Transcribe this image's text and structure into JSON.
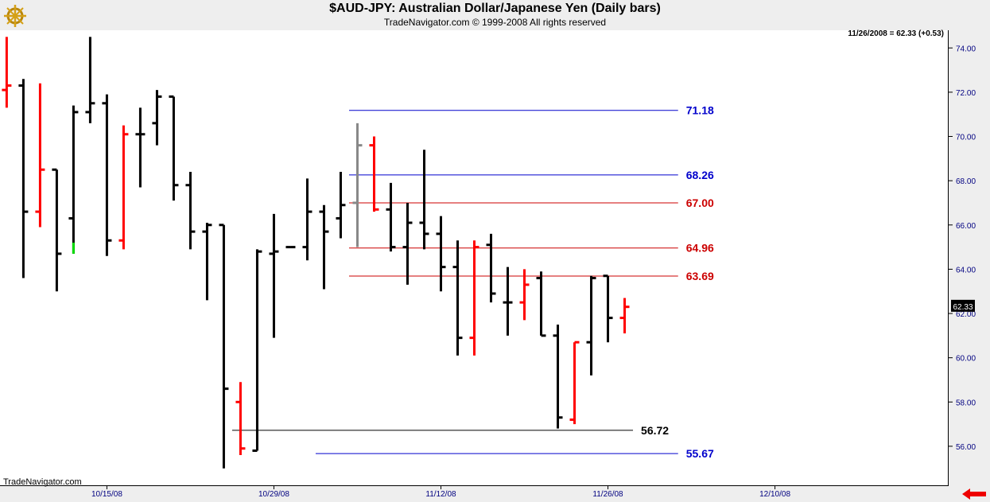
{
  "header": {
    "title": "$AUD-JPY:  Australian Dollar/Japanese Yen  (Daily bars)",
    "subtitle": "TradeNavigator.com © 1999-2008 All rights reserved",
    "logo_icon": "ship-wheel-logo-icon",
    "readout": "11/26/2008 = 62.33 (+0.53)"
  },
  "footer": {
    "watermark": "TradeNavigator.com",
    "nav_icon": "red-left-arrow-icon"
  },
  "colors": {
    "up_bar": "#000000",
    "down_bar": "#ff0000",
    "green_mark": "#00dd00",
    "gray_bar": "#888888",
    "blue_level": "#0000cc",
    "red_level": "#cc0000",
    "black_level": "#000000",
    "axis_text": "#000080",
    "panel": "#eeeeee"
  },
  "chart_data": {
    "type": "ohlc",
    "ylim": [
      54.2,
      74.8
    ],
    "y_ticks": [
      "56.00",
      "58.00",
      "60.00",
      "62.00",
      "64.00",
      "66.00",
      "68.00",
      "70.00",
      "72.00",
      "74.00"
    ],
    "x_ticks": [
      {
        "label": "10/15/08",
        "index": 6
      },
      {
        "label": "10/29/08",
        "index": 16
      },
      {
        "label": "11/12/08",
        "index": 26
      },
      {
        "label": "11/26/08",
        "index": 36
      },
      {
        "label": "12/10/08",
        "index": 46
      }
    ],
    "x_range": [
      -0.4,
      56.4
    ],
    "last_price_label": "62.33",
    "last_price": 62.33,
    "bars": [
      {
        "o": 72.1,
        "h": 74.5,
        "l": 71.3,
        "c": 72.3,
        "color": "red"
      },
      {
        "o": 72.3,
        "h": 72.6,
        "l": 63.6,
        "c": 66.6,
        "color": "black"
      },
      {
        "o": 66.6,
        "h": 72.4,
        "l": 65.9,
        "c": 68.5,
        "color": "red"
      },
      {
        "o": 68.5,
        "h": 68.5,
        "l": 63.0,
        "c": 64.7,
        "color": "black"
      },
      {
        "o": 66.3,
        "h": 71.4,
        "l": 64.7,
        "c": 71.1,
        "color": "black",
        "marker": {
          "from": 65.2,
          "to": 64.7,
          "color": "green"
        }
      },
      {
        "o": 71.1,
        "h": 74.5,
        "l": 70.6,
        "c": 71.5,
        "color": "black"
      },
      {
        "o": 71.5,
        "h": 71.9,
        "l": 64.6,
        "c": 65.3,
        "color": "black"
      },
      {
        "o": 65.3,
        "h": 70.5,
        "l": 64.9,
        "c": 70.1,
        "color": "red"
      },
      {
        "o": 70.1,
        "h": 71.3,
        "l": 67.7,
        "c": 70.1,
        "color": "black"
      },
      {
        "o": 70.6,
        "h": 72.1,
        "l": 69.6,
        "c": 71.8,
        "color": "black"
      },
      {
        "o": 71.8,
        "h": 71.8,
        "l": 67.1,
        "c": 67.8,
        "color": "black"
      },
      {
        "o": 67.8,
        "h": 68.4,
        "l": 64.9,
        "c": 65.7,
        "color": "black"
      },
      {
        "o": 65.7,
        "h": 66.1,
        "l": 62.6,
        "c": 66.0,
        "color": "black"
      },
      {
        "o": 66.0,
        "h": 66.0,
        "l": 55.0,
        "c": 58.6,
        "color": "black"
      },
      {
        "o": 58.0,
        "h": 58.9,
        "l": 55.6,
        "c": 55.9,
        "color": "red"
      },
      {
        "o": 55.8,
        "h": 64.9,
        "l": 55.8,
        "c": 64.8,
        "color": "black"
      },
      {
        "o": 64.7,
        "h": 66.5,
        "l": 60.9,
        "c": 64.8,
        "color": "black"
      },
      {
        "o": 65.0,
        "h": 65.0,
        "l": 65.0,
        "c": 65.0,
        "color": "black"
      },
      {
        "o": 65.0,
        "h": 68.1,
        "l": 64.4,
        "c": 66.6,
        "color": "black"
      },
      {
        "o": 66.6,
        "h": 66.9,
        "l": 63.1,
        "c": 65.7,
        "color": "black"
      },
      {
        "o": 66.3,
        "h": 68.4,
        "l": 65.4,
        "c": 66.9,
        "color": "black"
      },
      {
        "o": 67.0,
        "h": 70.6,
        "l": 65.0,
        "c": 69.6,
        "color": "gray"
      },
      {
        "o": 69.6,
        "h": 70.0,
        "l": 66.6,
        "c": 66.7,
        "color": "red"
      },
      {
        "o": 66.7,
        "h": 67.9,
        "l": 64.8,
        "c": 65.0,
        "color": "black"
      },
      {
        "o": 65.0,
        "h": 67.0,
        "l": 63.3,
        "c": 66.1,
        "color": "black"
      },
      {
        "o": 66.1,
        "h": 69.4,
        "l": 64.9,
        "c": 65.6,
        "color": "black"
      },
      {
        "o": 65.6,
        "h": 66.4,
        "l": 63.0,
        "c": 64.1,
        "color": "black"
      },
      {
        "o": 64.1,
        "h": 65.3,
        "l": 60.1,
        "c": 60.9,
        "color": "black"
      },
      {
        "o": 60.9,
        "h": 65.3,
        "l": 60.1,
        "c": 65.0,
        "color": "red"
      },
      {
        "o": 65.1,
        "h": 65.6,
        "l": 62.5,
        "c": 62.9,
        "color": "black"
      },
      {
        "o": 62.5,
        "h": 64.1,
        "l": 61.0,
        "c": 62.5,
        "color": "black"
      },
      {
        "o": 62.5,
        "h": 64.0,
        "l": 61.7,
        "c": 63.3,
        "color": "red"
      },
      {
        "o": 63.6,
        "h": 63.9,
        "l": 61.0,
        "c": 61.0,
        "color": "black"
      },
      {
        "o": 61.0,
        "h": 61.5,
        "l": 56.8,
        "c": 57.3,
        "color": "black"
      },
      {
        "o": 57.2,
        "h": 60.7,
        "l": 57.0,
        "c": 60.7,
        "color": "red"
      },
      {
        "o": 60.7,
        "h": 63.7,
        "l": 59.2,
        "c": 63.6,
        "color": "black"
      },
      {
        "o": 63.7,
        "h": 63.7,
        "l": 60.7,
        "c": 61.8,
        "color": "black"
      },
      {
        "o": 61.8,
        "h": 62.7,
        "l": 61.1,
        "c": 62.3,
        "color": "red"
      }
    ],
    "levels": [
      {
        "value": 71.18,
        "label": "71.18",
        "color": "blue",
        "x_from": 20.5,
        "x_to": 40.2
      },
      {
        "value": 68.26,
        "label": "68.26",
        "color": "blue",
        "x_from": 20.5,
        "x_to": 40.2
      },
      {
        "value": 67.0,
        "label": "67.00",
        "color": "red",
        "x_from": 20.5,
        "x_to": 40.2
      },
      {
        "value": 64.96,
        "label": "64.96",
        "color": "red",
        "x_from": 20.5,
        "x_to": 40.2
      },
      {
        "value": 63.69,
        "label": "63.69",
        "color": "red",
        "x_from": 20.5,
        "x_to": 40.2
      },
      {
        "value": 56.72,
        "label": "56.72",
        "color": "black",
        "x_from": 13.5,
        "x_to": 37.5
      },
      {
        "value": 55.67,
        "label": "55.67",
        "color": "blue",
        "x_from": 18.5,
        "x_to": 40.2
      }
    ]
  }
}
